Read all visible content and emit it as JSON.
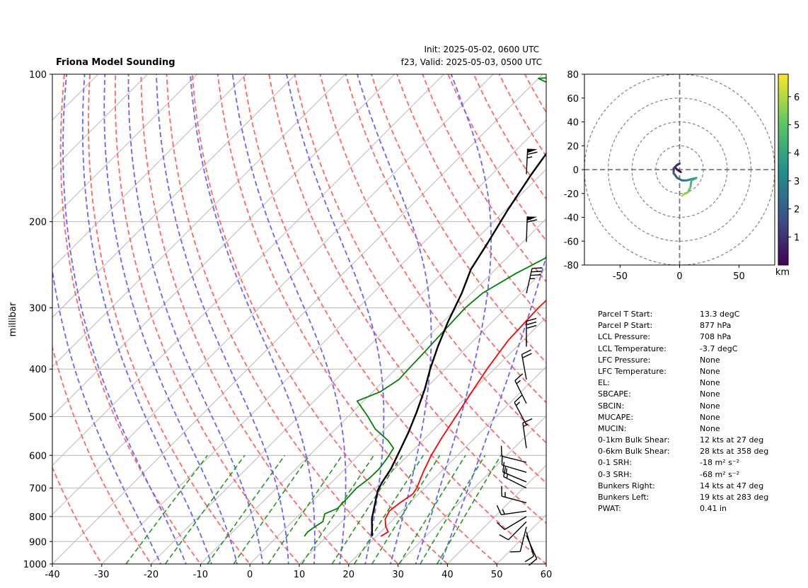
{
  "title": "Friona Model Sounding",
  "init_text": "Init: 2025-05-02, 0600 UTC",
  "valid_text": "f23, Valid: 2025-05-03, 0500 UTC",
  "chart_data": [
    {
      "type": "skew-t",
      "ylabel": "millibar",
      "xlabel": "",
      "xlim": [
        -40,
        60
      ],
      "ylim": [
        1000,
        100
      ],
      "y_scale": "log",
      "x_ticks": [
        -40,
        -30,
        -20,
        -10,
        0,
        10,
        20,
        30,
        40,
        50,
        60
      ],
      "y_ticks": [
        100,
        200,
        300,
        400,
        500,
        600,
        700,
        800,
        900,
        1000
      ],
      "grid": true,
      "colors": {
        "temperature": "#ff0000",
        "dewpoint": "#008000",
        "parcel": "#000000",
        "dry_adiabats": "#ff6666",
        "moist_adiabats": "#6666ff",
        "mixing_ratio": "#229922",
        "isotherms": "#b8b8b8",
        "isobars": "#b8b8b8"
      },
      "series": [
        {
          "id": "temperature",
          "points": [
            [
              20.9,
              878
            ],
            [
              21.5,
              860
            ],
            [
              20,
              840
            ],
            [
              18.3,
              810
            ],
            [
              17.5,
              780
            ],
            [
              18,
              750
            ],
            [
              18.8,
              720
            ],
            [
              18.4,
              700
            ],
            [
              16.5,
              650
            ],
            [
              14.7,
              600
            ],
            [
              13.2,
              550
            ],
            [
              11.8,
              500
            ],
            [
              10.2,
              450
            ],
            [
              8.5,
              400
            ],
            [
              7,
              350
            ],
            [
              6.5,
              300
            ],
            [
              6.8,
              270
            ],
            [
              9.5,
              220
            ],
            [
              19,
              160
            ],
            [
              26,
              140
            ],
            [
              40,
              100
            ]
          ]
        },
        {
          "id": "dewpoint",
          "points": [
            [
              5.4,
              878
            ],
            [
              5.2,
              860
            ],
            [
              5.6,
              840
            ],
            [
              6.2,
              820
            ],
            [
              5,
              790
            ],
            [
              6.5,
              770
            ],
            [
              6.4,
              740
            ],
            [
              6.2,
              700
            ],
            [
              6.8,
              670
            ],
            [
              6.9,
              640
            ],
            [
              6.4,
              610
            ],
            [
              5.6,
              580
            ],
            [
              3,
              560
            ],
            [
              -2,
              530
            ],
            [
              -6,
              500
            ],
            [
              -11.3,
              465
            ],
            [
              -8.5,
              445
            ],
            [
              -7.2,
              420
            ],
            [
              -7.4,
              400
            ],
            [
              -7.6,
              370
            ],
            [
              -8,
              330
            ],
            [
              -8.3,
              300
            ],
            [
              -7.8,
              280
            ],
            [
              -5,
              255
            ],
            [
              0.5,
              222
            ],
            [
              -0.6,
              190
            ],
            [
              -4.7,
              150
            ],
            [
              -18.2,
              118
            ],
            [
              -30,
              110
            ],
            [
              -40,
              102
            ],
            [
              -30,
              100
            ]
          ]
        },
        {
          "id": "parcel",
          "points": [
            [
              19.1,
              877
            ],
            [
              15.5,
              808
            ],
            [
              11,
              708
            ],
            [
              10.2,
              680
            ],
            [
              9.3,
              640
            ],
            [
              7.5,
              590
            ],
            [
              5.5,
              540
            ],
            [
              3,
              490
            ],
            [
              0,
              440
            ],
            [
              -3,
              400
            ],
            [
              -6,
              360
            ],
            [
              -9,
              320
            ],
            [
              -12,
              280
            ],
            [
              -15,
              250
            ],
            [
              -17,
              220
            ],
            [
              -19.5,
              190
            ],
            [
              -22,
              160
            ],
            [
              -24.5,
              130
            ],
            [
              -25.5,
              110
            ],
            [
              -25.5,
              100
            ]
          ]
        }
      ],
      "wind_barbs": [
        {
          "p": 875,
          "u": -4,
          "v": 9
        },
        {
          "p": 860,
          "u": -3,
          "v": 10
        },
        {
          "p": 840,
          "u": 2,
          "v": 8
        },
        {
          "p": 820,
          "u": 6,
          "v": 6
        },
        {
          "p": 800,
          "u": 10,
          "v": 6
        },
        {
          "p": 780,
          "u": 14,
          "v": 2
        },
        {
          "p": 750,
          "u": 15,
          "v": -4
        },
        {
          "p": 700,
          "u": 14,
          "v": -7
        },
        {
          "p": 680,
          "u": 12,
          "v": -5
        },
        {
          "p": 650,
          "u": 10,
          "v": -3
        },
        {
          "p": 620,
          "u": 8,
          "v": -2
        },
        {
          "p": 580,
          "u": 2,
          "v": -14
        },
        {
          "p": 520,
          "u": 8,
          "v": -15
        },
        {
          "p": 470,
          "u": 7,
          "v": -14
        },
        {
          "p": 420,
          "u": 4,
          "v": -22
        },
        {
          "p": 360,
          "u": 0,
          "v": -28
        },
        {
          "p": 280,
          "u": -8,
          "v": -35
        },
        {
          "p": 220,
          "u": -2,
          "v": -60
        },
        {
          "p": 160,
          "u": -3,
          "v": -65
        }
      ]
    },
    {
      "type": "hodograph",
      "xlabel": "",
      "ylabel": "",
      "xlim": [
        -80,
        80
      ],
      "ylim": [
        -80,
        80
      ],
      "x_ticks": [
        -50,
        0,
        50
      ],
      "y_ticks": [
        -80,
        -60,
        -40,
        -20,
        0,
        20,
        40,
        60,
        80
      ],
      "rings": [
        20,
        40,
        60,
        80
      ],
      "colorbar": {
        "label": "km",
        "ticks": [
          1,
          2,
          3,
          4,
          5,
          6
        ],
        "range": [
          0,
          6.8
        ]
      },
      "points": [
        {
          "u": 1,
          "v": -2,
          "h": 0.05
        },
        {
          "u": -2,
          "v": 0,
          "h": 0.2
        },
        {
          "u": -4,
          "v": 2,
          "h": 0.5
        },
        {
          "u": -2,
          "v": 4,
          "h": 0.7
        },
        {
          "u": 0,
          "v": 5,
          "h": 0.9
        },
        {
          "u": -2,
          "v": 4,
          "h": 1.0
        },
        {
          "u": -5,
          "v": 1,
          "h": 1.2
        },
        {
          "u": -5,
          "v": -3,
          "h": 1.6
        },
        {
          "u": -2,
          "v": -7,
          "h": 2.0
        },
        {
          "u": 2,
          "v": -9,
          "h": 2.4
        },
        {
          "u": 6,
          "v": -9,
          "h": 2.8
        },
        {
          "u": 10,
          "v": -8,
          "h": 3.3
        },
        {
          "u": 14,
          "v": -7,
          "h": 3.8
        },
        {
          "u": 10,
          "v": -9,
          "h": 4.3
        },
        {
          "u": 9,
          "v": -15,
          "h": 4.8
        },
        {
          "u": 7,
          "v": -19,
          "h": 5.3
        },
        {
          "u": 3,
          "v": -21,
          "h": 5.8
        },
        {
          "u": 2,
          "v": -22,
          "h": 6.2
        }
      ]
    }
  ],
  "parameters": [
    {
      "label": "Parcel T Start:",
      "value": "13.3 degC"
    },
    {
      "label": "Parcel P Start:",
      "value": "877 hPa"
    },
    {
      "label": "LCL Pressure:",
      "value": "708 hPa"
    },
    {
      "label": "LCL Temperature:",
      "value": "-3.7 degC"
    },
    {
      "label": "LFC Pressure:",
      "value": "None"
    },
    {
      "label": "LFC Temperature:",
      "value": "None"
    },
    {
      "label": "EL:",
      "value": "None"
    },
    {
      "label": "SBCAPE:",
      "value": "None"
    },
    {
      "label": "SBCIN:",
      "value": "None"
    },
    {
      "label": "MUCAPE:",
      "value": "None"
    },
    {
      "label": "MUCIN:",
      "value": "None"
    },
    {
      "label": "0-1km Bulk Shear:",
      "value": "12 kts at 27 deg"
    },
    {
      "label": "0-6km Bulk Shear:",
      "value": "28 kts at 358 deg"
    },
    {
      "label": "0-1 SRH:",
      "value": "-18 m² s⁻²"
    },
    {
      "label": "0-3 SRH:",
      "value": "-68 m² s⁻²"
    },
    {
      "label": "Bunkers Right:",
      "value": "14 kts at 47 deg"
    },
    {
      "label": "Bunkers Left:",
      "value": "19 kts at 283 deg"
    },
    {
      "label": "PWAT:",
      "value": "0.41 in"
    }
  ]
}
